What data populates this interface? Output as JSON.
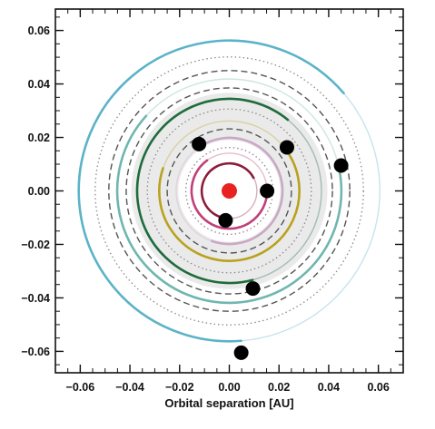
{
  "chart_data": {
    "type": "scatter",
    "title": "",
    "xlabel": "Orbital separation [AU]",
    "ylabel": "",
    "xlim": [
      -0.07,
      0.07
    ],
    "ylim": [
      -0.068,
      0.068
    ],
    "grid": false,
    "legend": "none",
    "x_ticks": [
      -0.06,
      -0.04,
      -0.02,
      0.0,
      0.02,
      0.04,
      0.06
    ],
    "x_tick_labels": [
      "−0.06",
      "−0.04",
      "−0.02",
      "0.00",
      "0.02",
      "0.04",
      "0.06"
    ],
    "y_ticks": [
      0.06,
      0.04,
      0.02,
      0.0,
      -0.02,
      -0.04,
      -0.06
    ],
    "y_tick_labels": [
      "0.06",
      "0.04",
      "0.02",
      "0.00",
      "−0.02",
      "−0.04",
      "−0.06"
    ],
    "star": {
      "x": 0.0,
      "y": 0.0,
      "color": "#e8231f"
    },
    "habitable_zone": {
      "inner_radius": 0.0205,
      "outer_radius": 0.0395,
      "color": "#e6e6e6"
    },
    "planets": [
      {
        "x": -0.0015,
        "y": -0.011,
        "orbit_radius": 0.0111,
        "orbit_color": "#8c1c3c"
      },
      {
        "x": 0.0152,
        "y": 0.0,
        "orbit_radius": 0.0152,
        "orbit_color": "#c0407a"
      },
      {
        "x": -0.0122,
        "y": 0.0175,
        "orbit_radius": 0.0214,
        "orbit_color": "#c9a8c4"
      },
      {
        "x": 0.0232,
        "y": 0.0163,
        "orbit_radius": 0.0282,
        "orbit_color": "#b8a21e"
      },
      {
        "x": 0.0095,
        "y": -0.0365,
        "orbit_radius": 0.0371,
        "orbit_color": "#1e6b3c"
      },
      {
        "x": 0.045,
        "y": 0.0095,
        "orbit_radius": 0.0451,
        "orbit_color": "#6fb6b0"
      },
      {
        "x": 0.0048,
        "y": -0.0605,
        "orbit_radius": 0.0606,
        "orbit_color": "#5bb3c8"
      }
    ],
    "reference_circles": [
      {
        "radius": 0.0175,
        "style": "dotted"
      },
      {
        "radius": 0.025,
        "style": "dashed"
      },
      {
        "radius": 0.033,
        "style": "dotted"
      },
      {
        "radius": 0.0415,
        "style": "dashed"
      },
      {
        "radius": 0.0485,
        "style": "dashed"
      },
      {
        "radius": 0.054,
        "style": "dotted"
      }
    ]
  }
}
